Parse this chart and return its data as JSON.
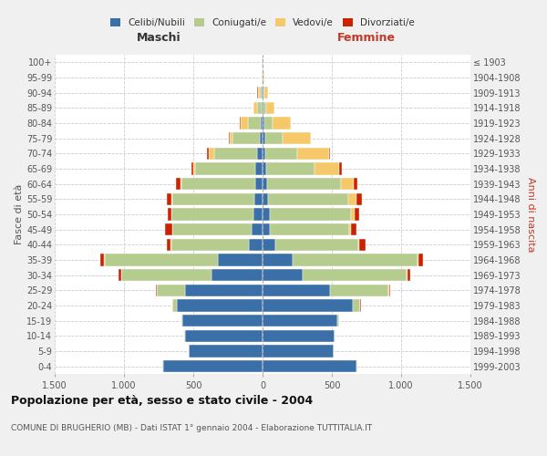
{
  "age_groups": [
    "0-4",
    "5-9",
    "10-14",
    "15-19",
    "20-24",
    "25-29",
    "30-34",
    "35-39",
    "40-44",
    "45-49",
    "50-54",
    "55-59",
    "60-64",
    "65-69",
    "70-74",
    "75-79",
    "80-84",
    "85-89",
    "90-94",
    "95-99",
    "100+"
  ],
  "birth_years": [
    "1999-2003",
    "1994-1998",
    "1989-1993",
    "1984-1988",
    "1979-1983",
    "1974-1978",
    "1969-1973",
    "1964-1968",
    "1959-1963",
    "1954-1958",
    "1949-1953",
    "1944-1948",
    "1939-1943",
    "1934-1938",
    "1929-1933",
    "1924-1928",
    "1919-1923",
    "1914-1918",
    "1909-1913",
    "1904-1908",
    "≤ 1903"
  ],
  "colors": {
    "celibi": "#3a6fa8",
    "coniugati": "#b5cc8e",
    "vedovi": "#f5c96a",
    "divorziati": "#cc2200"
  },
  "males": {
    "celibi": [
      720,
      530,
      560,
      580,
      620,
      560,
      370,
      320,
      100,
      80,
      65,
      60,
      55,
      55,
      40,
      20,
      15,
      8,
      5,
      3,
      2
    ],
    "coniugati": [
      2,
      2,
      3,
      5,
      30,
      200,
      650,
      820,
      560,
      570,
      590,
      590,
      530,
      430,
      310,
      200,
      90,
      30,
      15,
      3,
      2
    ],
    "vedovi": [
      0,
      0,
      2,
      2,
      2,
      3,
      2,
      2,
      2,
      3,
      5,
      8,
      10,
      15,
      40,
      20,
      55,
      25,
      15,
      3,
      2
    ],
    "divorziati": [
      0,
      0,
      0,
      0,
      2,
      5,
      20,
      30,
      30,
      50,
      25,
      35,
      30,
      10,
      10,
      2,
      2,
      2,
      2,
      0,
      0
    ]
  },
  "females": {
    "celibi": [
      680,
      510,
      520,
      540,
      650,
      490,
      290,
      220,
      90,
      55,
      50,
      40,
      35,
      25,
      20,
      18,
      12,
      8,
      5,
      3,
      2
    ],
    "coniugati": [
      2,
      2,
      3,
      10,
      55,
      420,
      750,
      900,
      600,
      570,
      590,
      580,
      530,
      350,
      230,
      130,
      60,
      20,
      10,
      3,
      2
    ],
    "vedovi": [
      0,
      0,
      0,
      0,
      2,
      3,
      5,
      5,
      10,
      15,
      25,
      55,
      90,
      180,
      230,
      200,
      130,
      55,
      25,
      5,
      3
    ],
    "divorziati": [
      0,
      0,
      0,
      0,
      2,
      5,
      20,
      35,
      45,
      40,
      35,
      40,
      30,
      15,
      8,
      3,
      3,
      2,
      2,
      0,
      0
    ]
  },
  "xlim": 1500,
  "title": "Popolazione per età, sesso e stato civile - 2004",
  "subtitle": "COMUNE DI BRUGHERIO (MB) - Dati ISTAT 1° gennaio 2004 - Elaborazione TUTTITALIA.IT",
  "ylabel": "Fasce di età",
  "ylabel_right": "Anni di nascita",
  "xlabel_left": "Maschi",
  "xlabel_right": "Femmine",
  "bg_color": "#f0f0f0",
  "plot_bg": "#ffffff",
  "tick_vals": [
    -1500,
    -1000,
    -500,
    0,
    500,
    1000,
    1500
  ],
  "tick_labels": [
    "1.500",
    "1.000",
    "500",
    "0",
    "500",
    "1.000",
    "1.500"
  ]
}
